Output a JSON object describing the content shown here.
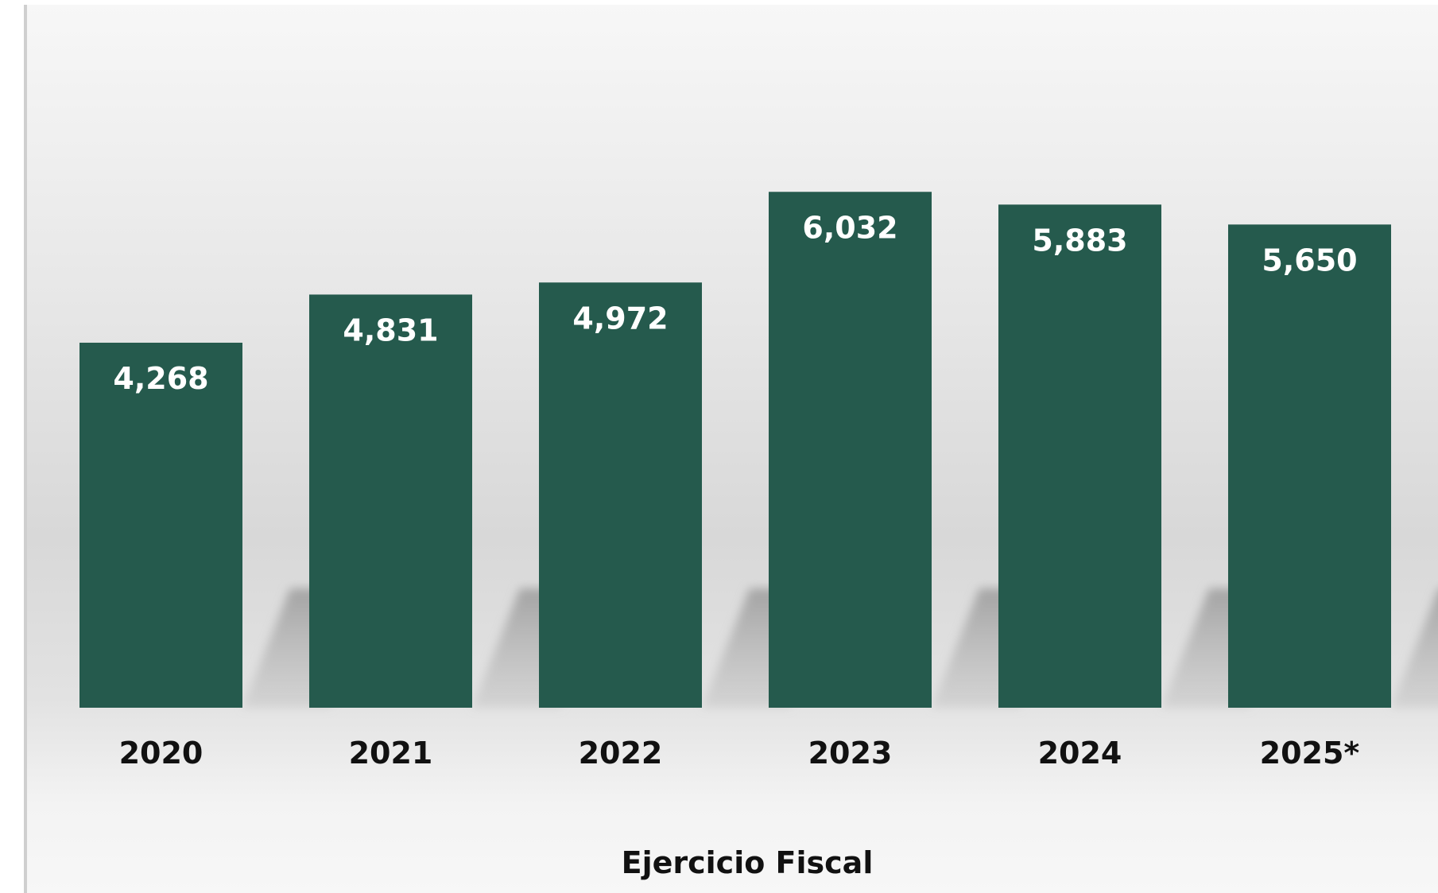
{
  "chart_data": {
    "type": "bar",
    "categories": [
      "2020",
      "2021",
      "2022",
      "2023",
      "2024",
      "2025*"
    ],
    "values": [
      4268,
      4831,
      4972,
      6032,
      5883,
      5650
    ],
    "data_labels": [
      "4,268",
      "4,831",
      "4,972",
      "6,032",
      "5,883",
      "5,650"
    ],
    "title": "",
    "xlabel": "Ejercicio Fiscal",
    "ylabel": "",
    "ylim": [
      0,
      6500
    ],
    "grid": false,
    "legend": "none",
    "bar_color": "#255a4d",
    "label_color": "#ffffff",
    "tick_color": "#111111"
  }
}
